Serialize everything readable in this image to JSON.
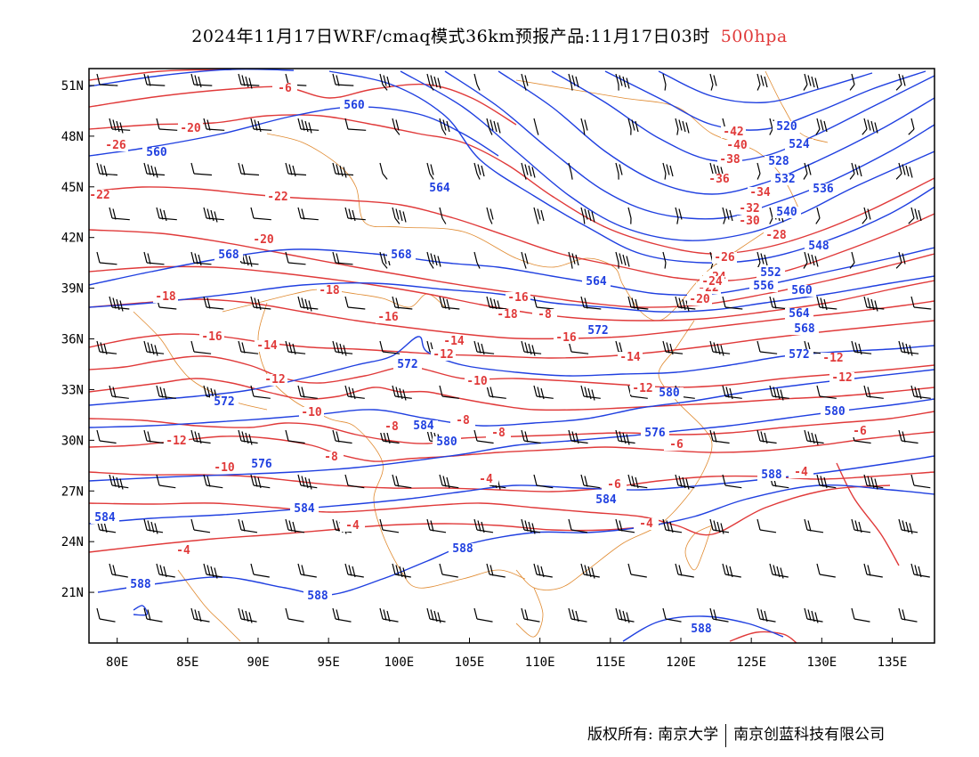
{
  "title": {
    "text": "2024年11月17日WRF/cmaq模式36km预报产品:11月17日03时",
    "level": "500hpa",
    "level_color": "#e03a3a"
  },
  "colors": {
    "height_contours": "#2040e0",
    "temperature_contours": "#e03a3a",
    "coastline": "#e08a30",
    "wind_barbs": "#000000"
  },
  "map": {
    "lon_range": [
      78,
      138
    ],
    "lat_range": [
      18,
      52
    ],
    "x_ticks": [
      "80E",
      "85E",
      "90E",
      "95E",
      "100E",
      "105E",
      "110E",
      "115E",
      "120E",
      "125E",
      "130E",
      "135E"
    ],
    "y_ticks": [
      "51N",
      "48N",
      "45N",
      "42N",
      "39N",
      "36N",
      "33N",
      "30N",
      "27N",
      "24N",
      "21N"
    ],
    "height_labels": [
      "560",
      "560",
      "564",
      "568",
      "568",
      "564",
      "572",
      "572",
      "572",
      "576",
      "580",
      "580",
      "584",
      "584",
      "588",
      "588",
      "588",
      "588",
      "520",
      "524",
      "528",
      "532",
      "536",
      "540",
      "548",
      "552",
      "556",
      "560",
      "564",
      "568",
      "572",
      "576",
      "580",
      "584",
      "588",
      "584"
    ],
    "temp_labels": [
      "-42",
      "-40",
      "-38",
      "-36",
      "-34",
      "-32",
      "-30",
      "-28",
      "-26",
      "-24",
      "-22",
      "-20",
      "-18",
      "-18",
      "-18",
      "-16",
      "-16",
      "-16",
      "-14",
      "-14",
      "-14",
      "-12",
      "-12",
      "-12",
      "-12",
      "-10",
      "-10",
      "-10",
      "-8",
      "-8",
      "-8",
      "-8",
      "-6",
      "-6",
      "-6",
      "-4",
      "-4",
      "-4",
      "-4",
      "-4",
      "-22",
      "-22",
      "-24",
      "-26",
      "-20",
      "-20",
      "-16",
      "-12",
      "-12",
      "-8",
      "-6"
    ]
  },
  "footer": {
    "copyright": "版权所有: 南京大学",
    "company": "南京创蓝科技有限公司"
  }
}
